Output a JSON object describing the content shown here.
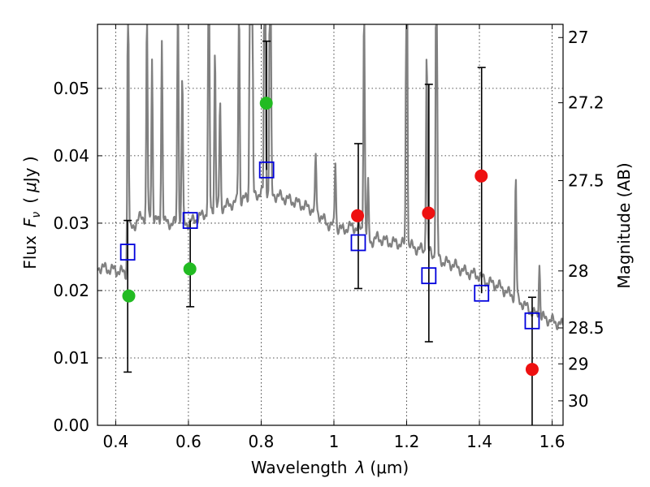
{
  "chart_data": {
    "type": "scatter",
    "xlabel": "Wavelength",
    "xlabel_symbol": "λ",
    "xlabel_unit": "(μm)",
    "ylabel": "Flux",
    "ylabel_symbol": "F",
    "ylabel_subscript": "ν",
    "ylabel_unit_open": "(",
    "ylabel_unit_mu": "μ",
    "ylabel_unit_rest": "Jy )",
    "y2label": "Magnitude (AB)",
    "xlim": [
      0.35,
      1.63
    ],
    "ylim": [
      0.0,
      0.0595
    ],
    "grid": true,
    "x_ticks": [
      {
        "value": 0.4,
        "label": "0.4"
      },
      {
        "value": 0.6,
        "label": "0.6"
      },
      {
        "value": 0.8,
        "label": "0.8"
      },
      {
        "value": 1.0,
        "label": "1"
      },
      {
        "value": 1.2,
        "label": "1.2"
      },
      {
        "value": 1.4,
        "label": "1.4"
      },
      {
        "value": 1.6,
        "label": "1.6"
      }
    ],
    "y_ticks": [
      {
        "value": 0.0,
        "label": "0.00"
      },
      {
        "value": 0.01,
        "label": "0.01"
      },
      {
        "value": 0.02,
        "label": "0.02"
      },
      {
        "value": 0.03,
        "label": "0.03"
      },
      {
        "value": 0.04,
        "label": "0.04"
      },
      {
        "value": 0.05,
        "label": "0.05"
      }
    ],
    "y2_ticks": [
      {
        "mag": 27,
        "label": "27"
      },
      {
        "mag": 27.2,
        "label": "27.2"
      },
      {
        "mag": 27.5,
        "label": "27.5"
      },
      {
        "mag": 28,
        "label": "28"
      },
      {
        "mag": 28.5,
        "label": "28.5"
      },
      {
        "mag": 29,
        "label": "29"
      },
      {
        "mag": 30,
        "label": "30"
      }
    ],
    "model_spectrum": {
      "color": "#808080",
      "continuum": [
        [
          0.35,
          0.0235
        ],
        [
          0.38,
          0.0232
        ],
        [
          0.41,
          0.0229
        ],
        [
          0.43,
          0.0225
        ],
        [
          0.44,
          0.029
        ],
        [
          0.47,
          0.031
        ],
        [
          0.5,
          0.0305
        ],
        [
          0.55,
          0.03
        ],
        [
          0.6,
          0.03
        ],
        [
          0.65,
          0.0315
        ],
        [
          0.7,
          0.0325
        ],
        [
          0.75,
          0.0335
        ],
        [
          0.8,
          0.0345
        ],
        [
          0.85,
          0.034
        ],
        [
          0.9,
          0.033
        ],
        [
          0.95,
          0.0318
        ],
        [
          0.98,
          0.03
        ],
        [
          1.02,
          0.029
        ],
        [
          1.05,
          0.0295
        ],
        [
          1.08,
          0.029
        ],
        [
          1.1,
          0.0272
        ],
        [
          1.12,
          0.0278
        ],
        [
          1.15,
          0.0272
        ],
        [
          1.18,
          0.027
        ],
        [
          1.2,
          0.0268
        ],
        [
          1.23,
          0.0262
        ],
        [
          1.26,
          0.0258
        ],
        [
          1.3,
          0.0243
        ],
        [
          1.33,
          0.0238
        ],
        [
          1.36,
          0.0228
        ],
        [
          1.4,
          0.0222
        ],
        [
          1.42,
          0.0213
        ],
        [
          1.45,
          0.0208
        ],
        [
          1.48,
          0.0196
        ],
        [
          1.5,
          0.019
        ],
        [
          1.53,
          0.0175
        ],
        [
          1.56,
          0.0162
        ],
        [
          1.6,
          0.0155
        ],
        [
          1.63,
          0.0148
        ]
      ],
      "lines": [
        [
          0.434,
          0.044
        ],
        [
          0.486,
          0.03
        ],
        [
          0.5,
          0.024
        ],
        [
          0.527,
          0.027
        ],
        [
          0.571,
          0.035
        ],
        [
          0.583,
          0.022
        ],
        [
          0.656,
          0.055
        ],
        [
          0.673,
          0.024
        ],
        [
          0.687,
          0.016
        ],
        [
          0.739,
          0.03
        ],
        [
          0.77,
          0.065
        ],
        [
          0.775,
          0.045
        ],
        [
          0.81,
          0.065
        ],
        [
          0.825,
          0.065
        ],
        [
          0.95,
          0.008
        ],
        [
          1.004,
          0.01
        ],
        [
          1.083,
          0.035
        ],
        [
          1.094,
          0.008
        ],
        [
          1.2,
          0.065
        ],
        [
          1.255,
          0.03
        ],
        [
          1.282,
          0.065
        ],
        [
          1.5,
          0.018
        ],
        [
          1.565,
          0.008
        ]
      ]
    },
    "series": [
      {
        "marker": "circle",
        "color": "#22bb22",
        "points": [
          {
            "x": 0.436,
            "y": 0.0192
          },
          {
            "x": 0.604,
            "y": 0.0232
          },
          {
            "x": 0.814,
            "y": 0.0478
          }
        ]
      },
      {
        "marker": "circle",
        "color": "#ee1111",
        "points": [
          {
            "x": 1.065,
            "y": 0.0311
          },
          {
            "x": 1.26,
            "y": 0.0315
          },
          {
            "x": 1.405,
            "y": 0.037
          },
          {
            "x": 1.545,
            "y": 0.0083
          }
        ]
      },
      {
        "marker": "square",
        "color": "#0000dd",
        "points": [
          {
            "x": 0.433,
            "y": 0.0257,
            "err_low": 0.0178,
            "err_high": 0.0047
          },
          {
            "x": 0.605,
            "y": 0.0304,
            "err_low": 0.0128,
            "err_high": 0.0
          },
          {
            "x": 0.815,
            "y": 0.0379,
            "err_low": 0.0,
            "err_high": 0.0191
          },
          {
            "x": 1.067,
            "y": 0.0271,
            "err_low": 0.0068,
            "err_high": 0.0147
          },
          {
            "x": 1.261,
            "y": 0.0222,
            "err_low": 0.0098,
            "err_high": 0.0284
          },
          {
            "x": 1.406,
            "y": 0.0196,
            "err_low": 0.0,
            "err_high": 0.0335
          },
          {
            "x": 1.545,
            "y": 0.0155,
            "err_low": 0.016,
            "err_high": 0.0035
          }
        ]
      }
    ]
  }
}
